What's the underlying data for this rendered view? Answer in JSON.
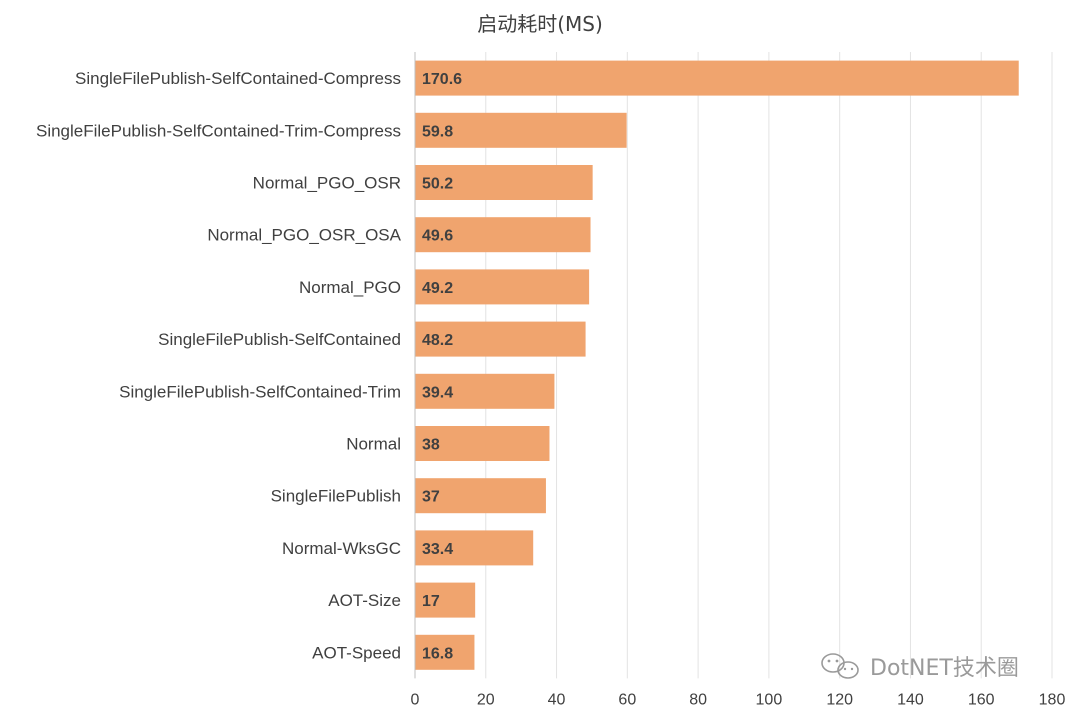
{
  "chart_data": {
    "type": "bar",
    "orientation": "horizontal",
    "title": "启动耗时(MS)",
    "categories": [
      "SingleFilePublish-SelfContained-Compress",
      "SingleFilePublish-SelfContained-Trim-Compress",
      "Normal_PGO_OSR",
      "Normal_PGO_OSR_OSA",
      "Normal_PGO",
      "SingleFilePublish-SelfContained",
      "SingleFilePublish-SelfContained-Trim",
      "Normal",
      "SingleFilePublish",
      "Normal-WksGC",
      "AOT-Size",
      "AOT-Speed"
    ],
    "values": [
      170.6,
      59.8,
      50.2,
      49.6,
      49.2,
      48.2,
      39.4,
      38,
      37,
      33.4,
      17,
      16.8
    ],
    "value_labels": [
      "170.6",
      "59.8",
      "50.2",
      "49.6",
      "49.2",
      "48.2",
      "39.4",
      "38",
      "37",
      "33.4",
      "17",
      "16.8"
    ],
    "xlim": [
      0,
      180
    ],
    "xticks": [
      "0",
      "20",
      "40",
      "60",
      "80",
      "100",
      "120",
      "140",
      "160",
      "180"
    ],
    "grid": true,
    "bar_color": "#f0a46e"
  },
  "watermark": {
    "text": "DotNET技术圈",
    "icon": "wechat-icon"
  }
}
